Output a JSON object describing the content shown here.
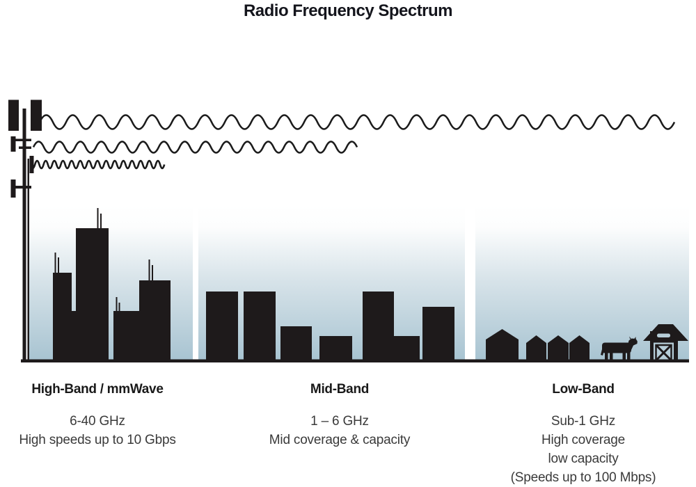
{
  "title": "Radio Frequency Spectrum",
  "bands": [
    {
      "label": "High-Band / mmWave",
      "frequency": "6-40 GHz",
      "lines": [
        "High speeds up to 10 Gbps"
      ]
    },
    {
      "label": "Mid-Band",
      "frequency": "1 – 6 GHz",
      "lines": [
        "Mid coverage & capacity"
      ]
    },
    {
      "label": "Low-Band",
      "frequency": "Sub-1 GHz",
      "lines": [
        "High coverage",
        "low capacity",
        "(Speeds up to 100 Mbps)"
      ]
    }
  ],
  "icons": [
    "cell-tower-icon",
    "low-frequency-wave",
    "mid-frequency-wave",
    "high-frequency-wave",
    "city-skyline-icon",
    "town-skyline-icon",
    "house-icon",
    "cow-icon",
    "barn-icon"
  ],
  "colors": {
    "ink": "#1e1a1b",
    "heading_text": "#191919",
    "body_text": "#3a3a3a",
    "sky_gradient_bottom": "#a7c3d1"
  }
}
